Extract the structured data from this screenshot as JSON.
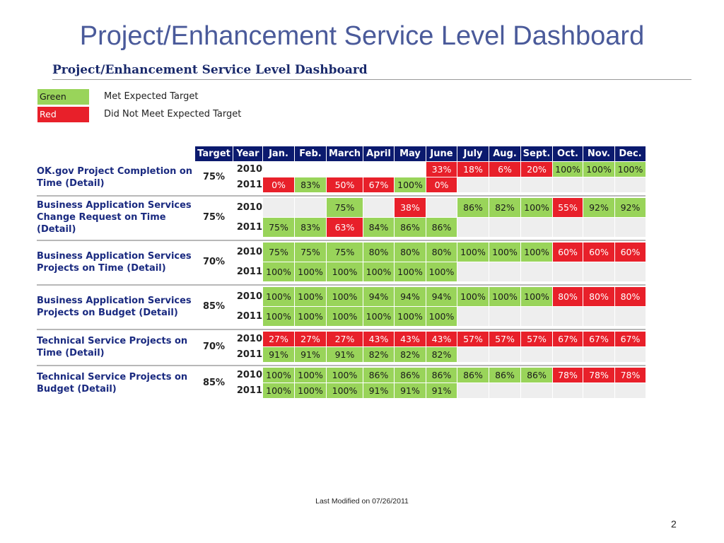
{
  "slide": {
    "title": "Project/Enhancement Service Level Dashboard",
    "subtitle": "Project/Enhancement Service Level Dashboard",
    "footer": "Last Modified on 07/26/2011",
    "page_number": "2"
  },
  "legend": [
    {
      "swatch": "Green",
      "text": "Met Expected Target",
      "color": "#99d45a"
    },
    {
      "swatch": "Red",
      "text": "Did Not Meet Expected Target",
      "color": "#e8202a"
    }
  ],
  "table": {
    "headers": [
      "Target",
      "Year",
      "Jan.",
      "Feb.",
      "March",
      "April",
      "May",
      "June",
      "July",
      "Aug.",
      "Sept.",
      "Oct.",
      "Nov.",
      "Dec."
    ],
    "metrics": [
      {
        "name": "OK.gov Project Completion on Time (Detail)",
        "target": "75%",
        "rows": [
          {
            "year": "2010",
            "cells": [
              {
                "v": "",
                "s": "w"
              },
              {
                "v": "",
                "s": "w"
              },
              {
                "v": "",
                "s": "w"
              },
              {
                "v": "",
                "s": "w"
              },
              {
                "v": "",
                "s": "w"
              },
              {
                "v": "33%",
                "s": "r"
              },
              {
                "v": "18%",
                "s": "r"
              },
              {
                "v": "6%",
                "s": "r"
              },
              {
                "v": "20%",
                "s": "r"
              },
              {
                "v": "100%",
                "s": "g"
              },
              {
                "v": "100%",
                "s": "g"
              },
              {
                "v": "100%",
                "s": "g"
              }
            ]
          },
          {
            "year": "2011",
            "cells": [
              {
                "v": "0%",
                "s": "r"
              },
              {
                "v": "83%",
                "s": "g"
              },
              {
                "v": "50%",
                "s": "r"
              },
              {
                "v": "67%",
                "s": "r"
              },
              {
                "v": "100%",
                "s": "g"
              },
              {
                "v": "0%",
                "s": "r"
              },
              {
                "v": "",
                "s": "e"
              },
              {
                "v": "",
                "s": "e"
              },
              {
                "v": "",
                "s": "e"
              },
              {
                "v": "",
                "s": "e"
              },
              {
                "v": "",
                "s": "e"
              },
              {
                "v": "",
                "s": "e"
              }
            ]
          }
        ]
      },
      {
        "name": "Business Application Services Change Request on Time (Detail)",
        "target": "75%",
        "rows": [
          {
            "year": "2010",
            "cells": [
              {
                "v": "",
                "s": "e"
              },
              {
                "v": "",
                "s": "e"
              },
              {
                "v": "75%",
                "s": "g"
              },
              {
                "v": "",
                "s": "e"
              },
              {
                "v": "38%",
                "s": "r"
              },
              {
                "v": "",
                "s": "e"
              },
              {
                "v": "86%",
                "s": "g"
              },
              {
                "v": "82%",
                "s": "g"
              },
              {
                "v": "100%",
                "s": "g"
              },
              {
                "v": "55%",
                "s": "r"
              },
              {
                "v": "92%",
                "s": "g"
              },
              {
                "v": "92%",
                "s": "g"
              }
            ]
          },
          {
            "year": "2011",
            "cells": [
              {
                "v": "75%",
                "s": "g"
              },
              {
                "v": "83%",
                "s": "g"
              },
              {
                "v": "63%",
                "s": "r"
              },
              {
                "v": "84%",
                "s": "g"
              },
              {
                "v": "86%",
                "s": "g"
              },
              {
                "v": "86%",
                "s": "g"
              },
              {
                "v": "",
                "s": "e"
              },
              {
                "v": "",
                "s": "e"
              },
              {
                "v": "",
                "s": "e"
              },
              {
                "v": "",
                "s": "e"
              },
              {
                "v": "",
                "s": "e"
              },
              {
                "v": "",
                "s": "e"
              }
            ]
          }
        ]
      },
      {
        "name": "Business Application Services Projects on Time (Detail)",
        "target": "70%",
        "rows": [
          {
            "year": "2010",
            "cells": [
              {
                "v": "75%",
                "s": "g"
              },
              {
                "v": "75%",
                "s": "g"
              },
              {
                "v": "75%",
                "s": "g"
              },
              {
                "v": "80%",
                "s": "g"
              },
              {
                "v": "80%",
                "s": "g"
              },
              {
                "v": "80%",
                "s": "g"
              },
              {
                "v": "100%",
                "s": "g"
              },
              {
                "v": "100%",
                "s": "g"
              },
              {
                "v": "100%",
                "s": "g"
              },
              {
                "v": "60%",
                "s": "r"
              },
              {
                "v": "60%",
                "s": "r"
              },
              {
                "v": "60%",
                "s": "r"
              }
            ]
          },
          {
            "year": "2011",
            "cells": [
              {
                "v": "100%",
                "s": "g"
              },
              {
                "v": "100%",
                "s": "g"
              },
              {
                "v": "100%",
                "s": "g"
              },
              {
                "v": "100%",
                "s": "g"
              },
              {
                "v": "100%",
                "s": "g"
              },
              {
                "v": "100%",
                "s": "g"
              },
              {
                "v": "",
                "s": "e"
              },
              {
                "v": "",
                "s": "e"
              },
              {
                "v": "",
                "s": "e"
              },
              {
                "v": "",
                "s": "e"
              },
              {
                "v": "",
                "s": "e"
              },
              {
                "v": "",
                "s": "e"
              }
            ]
          }
        ]
      },
      {
        "name": "Business Application Services Projects on Budget (Detail)",
        "target": "85%",
        "rows": [
          {
            "year": "2010",
            "cells": [
              {
                "v": "100%",
                "s": "g"
              },
              {
                "v": "100%",
                "s": "g"
              },
              {
                "v": "100%",
                "s": "g"
              },
              {
                "v": "94%",
                "s": "g"
              },
              {
                "v": "94%",
                "s": "g"
              },
              {
                "v": "94%",
                "s": "g"
              },
              {
                "v": "100%",
                "s": "g"
              },
              {
                "v": "100%",
                "s": "g"
              },
              {
                "v": "100%",
                "s": "g"
              },
              {
                "v": "80%",
                "s": "r"
              },
              {
                "v": "80%",
                "s": "r"
              },
              {
                "v": "80%",
                "s": "r"
              }
            ]
          },
          {
            "year": "2011",
            "cells": [
              {
                "v": "100%",
                "s": "g"
              },
              {
                "v": "100%",
                "s": "g"
              },
              {
                "v": "100%",
                "s": "g"
              },
              {
                "v": "100%",
                "s": "g"
              },
              {
                "v": "100%",
                "s": "g"
              },
              {
                "v": "100%",
                "s": "g"
              },
              {
                "v": "",
                "s": "e"
              },
              {
                "v": "",
                "s": "e"
              },
              {
                "v": "",
                "s": "e"
              },
              {
                "v": "",
                "s": "e"
              },
              {
                "v": "",
                "s": "e"
              },
              {
                "v": "",
                "s": "e"
              }
            ]
          }
        ]
      },
      {
        "name": "Technical Service Projects on Time (Detail)",
        "target": "70%",
        "rows": [
          {
            "year": "2010",
            "cells": [
              {
                "v": "27%",
                "s": "r"
              },
              {
                "v": "27%",
                "s": "r"
              },
              {
                "v": "27%",
                "s": "r"
              },
              {
                "v": "43%",
                "s": "r"
              },
              {
                "v": "43%",
                "s": "r"
              },
              {
                "v": "43%",
                "s": "r"
              },
              {
                "v": "57%",
                "s": "r"
              },
              {
                "v": "57%",
                "s": "r"
              },
              {
                "v": "57%",
                "s": "r"
              },
              {
                "v": "67%",
                "s": "r"
              },
              {
                "v": "67%",
                "s": "r"
              },
              {
                "v": "67%",
                "s": "r"
              }
            ]
          },
          {
            "year": "2011",
            "cells": [
              {
                "v": "91%",
                "s": "g"
              },
              {
                "v": "91%",
                "s": "g"
              },
              {
                "v": "91%",
                "s": "g"
              },
              {
                "v": "82%",
                "s": "g"
              },
              {
                "v": "82%",
                "s": "g"
              },
              {
                "v": "82%",
                "s": "g"
              },
              {
                "v": "",
                "s": "e"
              },
              {
                "v": "",
                "s": "e"
              },
              {
                "v": "",
                "s": "e"
              },
              {
                "v": "",
                "s": "e"
              },
              {
                "v": "",
                "s": "e"
              },
              {
                "v": "",
                "s": "e"
              }
            ]
          }
        ]
      },
      {
        "name": "Technical Service Projects on Budget (Detail)",
        "target": "85%",
        "rows": [
          {
            "year": "2010",
            "cells": [
              {
                "v": "100%",
                "s": "g"
              },
              {
                "v": "100%",
                "s": "g"
              },
              {
                "v": "100%",
                "s": "g"
              },
              {
                "v": "86%",
                "s": "g"
              },
              {
                "v": "86%",
                "s": "g"
              },
              {
                "v": "86%",
                "s": "g"
              },
              {
                "v": "86%",
                "s": "g"
              },
              {
                "v": "86%",
                "s": "g"
              },
              {
                "v": "86%",
                "s": "g"
              },
              {
                "v": "78%",
                "s": "r"
              },
              {
                "v": "78%",
                "s": "r"
              },
              {
                "v": "78%",
                "s": "r"
              }
            ]
          },
          {
            "year": "2011",
            "cells": [
              {
                "v": "100%",
                "s": "g"
              },
              {
                "v": "100%",
                "s": "g"
              },
              {
                "v": "100%",
                "s": "g"
              },
              {
                "v": "91%",
                "s": "g"
              },
              {
                "v": "91%",
                "s": "g"
              },
              {
                "v": "91%",
                "s": "g"
              },
              {
                "v": "",
                "s": "e"
              },
              {
                "v": "",
                "s": "e"
              },
              {
                "v": "",
                "s": "e"
              },
              {
                "v": "",
                "s": "e"
              },
              {
                "v": "",
                "s": "e"
              },
              {
                "v": "",
                "s": "e"
              }
            ]
          }
        ]
      }
    ]
  }
}
